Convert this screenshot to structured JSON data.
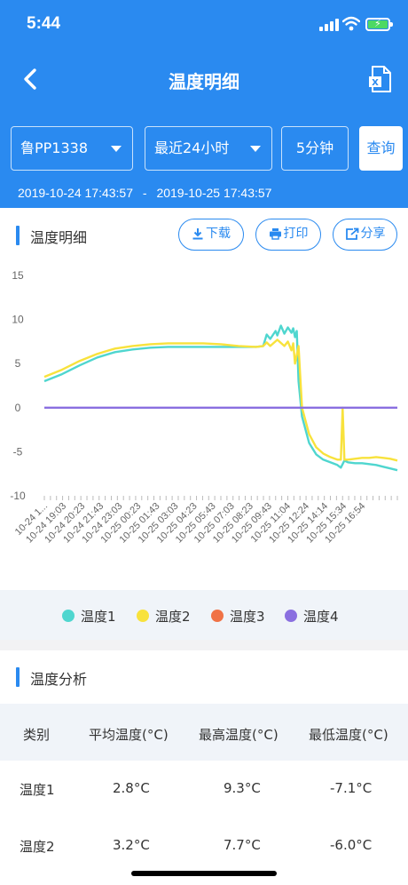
{
  "status": {
    "time": "5:44"
  },
  "nav": {
    "title": "温度明细",
    "back_icon": "chevron-left-icon",
    "export_icon": "excel-export-icon",
    "export_badge": "X"
  },
  "filters": {
    "vehicle": "鲁PP1338",
    "period": "最近24小时",
    "interval": "5分钟",
    "query": "查询"
  },
  "range": {
    "start": "2019-10-24 17:43:57",
    "separator": "-",
    "end": "2019-10-25 17:43:57"
  },
  "chart_section": {
    "title": "温度明细",
    "download": "下载",
    "print": "打印",
    "share": "分享"
  },
  "colors": {
    "primary": "#2a8af0",
    "series1": "#4fd6cf",
    "series2": "#f8e23c",
    "series3": "#f07246",
    "series4": "#8a6fe0"
  },
  "chart_data": {
    "type": "line",
    "title": "",
    "ylim": [
      -10,
      15
    ],
    "yticks": [
      15,
      10,
      5,
      0,
      -5,
      -10
    ],
    "xtick_labels": [
      "10-24 1...",
      "10-24 19:03",
      "10-24 20:23",
      "10-24 21:43",
      "10-24 23:03",
      "10-25 00:23",
      "10-25 01:43",
      "10-25 03:03",
      "10-25 04:23",
      "10-25 05:43",
      "10-25 07:03",
      "10-25 08:23",
      "10-25 09:43",
      "10-25 11:04",
      "10-25 12:24",
      "10-25 14:14",
      "10-25 15:34",
      "10-25 16:54"
    ],
    "series": [
      {
        "name": "温度1",
        "color": "#4fd6cf",
        "x": [
          0,
          0.05,
          0.1,
          0.15,
          0.2,
          0.25,
          0.3,
          0.35,
          0.4,
          0.45,
          0.5,
          0.55,
          0.6,
          0.62,
          0.63,
          0.64,
          0.655,
          0.66,
          0.67,
          0.68,
          0.69,
          0.7,
          0.705,
          0.71,
          0.715,
          0.72,
          0.73,
          0.75,
          0.77,
          0.79,
          0.81,
          0.83,
          0.84,
          0.85,
          0.86,
          0.88,
          0.9,
          0.92,
          0.94,
          0.96,
          0.98,
          1.0
        ],
        "y": [
          3.0,
          3.8,
          4.8,
          5.7,
          6.3,
          6.6,
          6.8,
          6.9,
          6.9,
          6.9,
          6.9,
          6.9,
          6.9,
          7.0,
          8.3,
          7.8,
          8.7,
          8.2,
          9.3,
          8.4,
          9.1,
          8.5,
          9.0,
          8.0,
          8.7,
          3.0,
          -1.0,
          -4.0,
          -5.3,
          -5.9,
          -6.2,
          -6.5,
          -6.8,
          -6.0,
          -6.2,
          -6.3,
          -6.3,
          -6.4,
          -6.5,
          -6.7,
          -6.9,
          -7.1
        ]
      },
      {
        "name": "温度2",
        "color": "#f8e23c",
        "x": [
          0,
          0.05,
          0.1,
          0.15,
          0.2,
          0.25,
          0.3,
          0.35,
          0.4,
          0.45,
          0.5,
          0.55,
          0.6,
          0.62,
          0.63,
          0.64,
          0.66,
          0.68,
          0.69,
          0.7,
          0.705,
          0.71,
          0.72,
          0.73,
          0.75,
          0.77,
          0.79,
          0.81,
          0.83,
          0.84,
          0.845,
          0.85,
          0.86,
          0.88,
          0.9,
          0.92,
          0.94,
          0.96,
          0.98,
          1.0
        ],
        "y": [
          3.5,
          4.3,
          5.3,
          6.1,
          6.7,
          7.0,
          7.2,
          7.3,
          7.3,
          7.3,
          7.2,
          7.0,
          6.9,
          7.0,
          7.4,
          7.0,
          7.7,
          7.0,
          7.5,
          6.5,
          7.3,
          5.0,
          7.0,
          0.0,
          -3.0,
          -4.5,
          -5.2,
          -5.6,
          -5.9,
          -5.9,
          0.0,
          -5.9,
          -5.9,
          -5.8,
          -5.7,
          -5.7,
          -5.6,
          -5.7,
          -5.8,
          -6.0
        ]
      },
      {
        "name": "温度3",
        "color": "#f07246",
        "x": [],
        "y": []
      },
      {
        "name": "温度4",
        "color": "#8a6fe0",
        "x": [
          0,
          1
        ],
        "y": [
          0,
          0
        ]
      }
    ]
  },
  "legend": [
    {
      "name": "温度1",
      "color": "#4fd6cf"
    },
    {
      "name": "温度2",
      "color": "#f8e23c"
    },
    {
      "name": "温度3",
      "color": "#f07246"
    },
    {
      "name": "温度4",
      "color": "#8a6fe0"
    }
  ],
  "analysis": {
    "title": "温度分析",
    "headers": [
      "类别",
      "平均温度(°C)",
      "最高温度(°C)",
      "最低温度(°C)"
    ],
    "rows": [
      [
        "温度1",
        "2.8°C",
        "9.3°C",
        "-7.1°C"
      ],
      [
        "温度2",
        "3.2°C",
        "7.7°C",
        "-6.0°C"
      ]
    ]
  }
}
